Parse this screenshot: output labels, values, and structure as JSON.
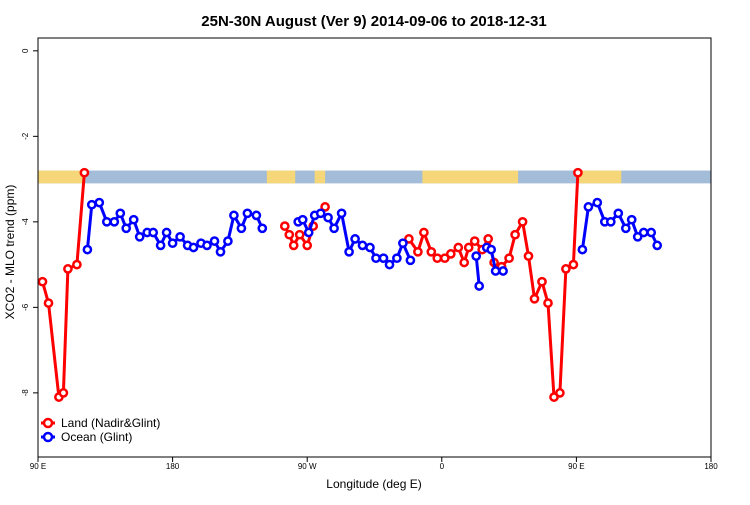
{
  "chart_data": {
    "type": "line",
    "title": "25N-30N August (Ver 9)   2014-09-06 to 2018-12-31",
    "xlabel": "Longitude (deg E)",
    "ylabel": "XCO2 - MLO trend (ppm)",
    "xlim": [
      90,
      540
    ],
    "ylim": [
      -9.5,
      0.3
    ],
    "x_ticks": [
      {
        "value": 90,
        "label": "90 E"
      },
      {
        "value": 180,
        "label": "180"
      },
      {
        "value": 270,
        "label": "90 W"
      },
      {
        "value": 360,
        "label": "0"
      },
      {
        "value": 450,
        "label": "90 E"
      },
      {
        "value": 540,
        "label": "180"
      }
    ],
    "y_ticks": [
      {
        "value": 0,
        "label": "0"
      },
      {
        "value": -2,
        "label": "-2"
      },
      {
        "value": -4,
        "label": "-4"
      },
      {
        "value": -6,
        "label": "-6"
      },
      {
        "value": -8,
        "label": "-8"
      }
    ],
    "grid": false,
    "legend_position": "bottom-left",
    "land_ocean_strip": {
      "y_range": [
        -3.1,
        -2.8
      ],
      "ocean_color": "#a3bcd8",
      "land_color": "#f5d679",
      "land_segments": [
        [
          90,
          121
        ],
        [
          243,
          262
        ],
        [
          275,
          282
        ],
        [
          347,
          411
        ],
        [
          450,
          480
        ]
      ]
    },
    "series": [
      {
        "name": "Land (Nadir&Glint)",
        "color": "#ff0000",
        "segments": [
          [
            [
              93,
              -5.4
            ],
            [
              97,
              -5.9
            ],
            [
              104,
              -8.1
            ],
            [
              107,
              -8.0
            ],
            [
              110,
              -5.1
            ],
            [
              116,
              -5.0
            ],
            [
              121,
              -2.85
            ]
          ],
          [
            [
              255,
              -4.1
            ],
            [
              258,
              -4.3
            ],
            [
              261,
              -4.55
            ],
            [
              265,
              -4.3
            ],
            [
              270,
              -4.55
            ],
            [
              274,
              -4.1
            ]
          ],
          [
            [
              282,
              -3.65
            ]
          ],
          [
            [
              338,
              -4.4
            ],
            [
              344,
              -4.7
            ],
            [
              348,
              -4.25
            ],
            [
              353,
              -4.7
            ],
            [
              357,
              -4.85
            ],
            [
              362,
              -4.85
            ],
            [
              366,
              -4.75
            ],
            [
              371,
              -4.6
            ],
            [
              375,
              -4.95
            ],
            [
              378,
              -4.6
            ],
            [
              382,
              -4.45
            ],
            [
              387,
              -4.65
            ],
            [
              391,
              -4.4
            ],
            [
              395,
              -4.95
            ],
            [
              400,
              -5.05
            ],
            [
              405,
              -4.85
            ],
            [
              409,
              -4.3
            ],
            [
              414,
              -4.0
            ],
            [
              418,
              -4.8
            ],
            [
              422,
              -5.8
            ],
            [
              427,
              -5.4
            ],
            [
              431,
              -5.9
            ],
            [
              435,
              -8.1
            ],
            [
              439,
              -8.0
            ],
            [
              443,
              -5.1
            ],
            [
              448,
              -5.0
            ],
            [
              451,
              -2.85
            ]
          ]
        ]
      },
      {
        "name": "Ocean (Glint)",
        "color": "#0000ff",
        "segments": [
          [
            [
              123,
              -4.65
            ],
            [
              126,
              -3.6
            ],
            [
              131,
              -3.55
            ],
            [
              136,
              -4.0
            ],
            [
              141,
              -4.0
            ],
            [
              145,
              -3.8
            ],
            [
              149,
              -4.15
            ],
            [
              154,
              -3.95
            ],
            [
              158,
              -4.35
            ],
            [
              163,
              -4.25
            ],
            [
              167,
              -4.25
            ],
            [
              172,
              -4.55
            ],
            [
              176,
              -4.25
            ],
            [
              180,
              -4.5
            ],
            [
              185,
              -4.35
            ],
            [
              190,
              -4.55
            ],
            [
              194,
              -4.6
            ],
            [
              199,
              -4.5
            ],
            [
              203,
              -4.55
            ],
            [
              208,
              -4.45
            ],
            [
              212,
              -4.7
            ],
            [
              217,
              -4.45
            ],
            [
              221,
              -3.85
            ],
            [
              226,
              -4.15
            ],
            [
              230,
              -3.8
            ],
            [
              236,
              -3.85
            ],
            [
              240,
              -4.15
            ]
          ],
          [
            [
              264,
              -4.0
            ],
            [
              267,
              -3.95
            ],
            [
              271,
              -4.25
            ],
            [
              275,
              -3.85
            ],
            [
              279,
              -3.8
            ],
            [
              284,
              -3.9
            ],
            [
              288,
              -4.15
            ],
            [
              293,
              -3.8
            ],
            [
              298,
              -4.7
            ],
            [
              302,
              -4.4
            ],
            [
              307,
              -4.55
            ],
            [
              312,
              -4.6
            ],
            [
              316,
              -4.85
            ],
            [
              321,
              -4.85
            ],
            [
              325,
              -5.0
            ],
            [
              330,
              -4.85
            ],
            [
              334,
              -4.5
            ],
            [
              339,
              -4.9
            ]
          ],
          [
            [
              383,
              -4.8
            ],
            [
              385,
              -5.5
            ]
          ],
          [
            [
              390,
              -4.6
            ],
            [
              393,
              -4.65
            ],
            [
              396,
              -5.15
            ],
            [
              401,
              -5.15
            ]
          ],
          [
            [
              454,
              -4.65
            ],
            [
              458,
              -3.65
            ],
            [
              464,
              -3.55
            ],
            [
              469,
              -4.0
            ],
            [
              473,
              -4.0
            ],
            [
              478,
              -3.8
            ],
            [
              483,
              -4.15
            ],
            [
              487,
              -3.95
            ],
            [
              491,
              -4.35
            ],
            [
              495,
              -4.25
            ],
            [
              500,
              -4.25
            ],
            [
              504,
              -4.55
            ]
          ]
        ]
      }
    ]
  }
}
